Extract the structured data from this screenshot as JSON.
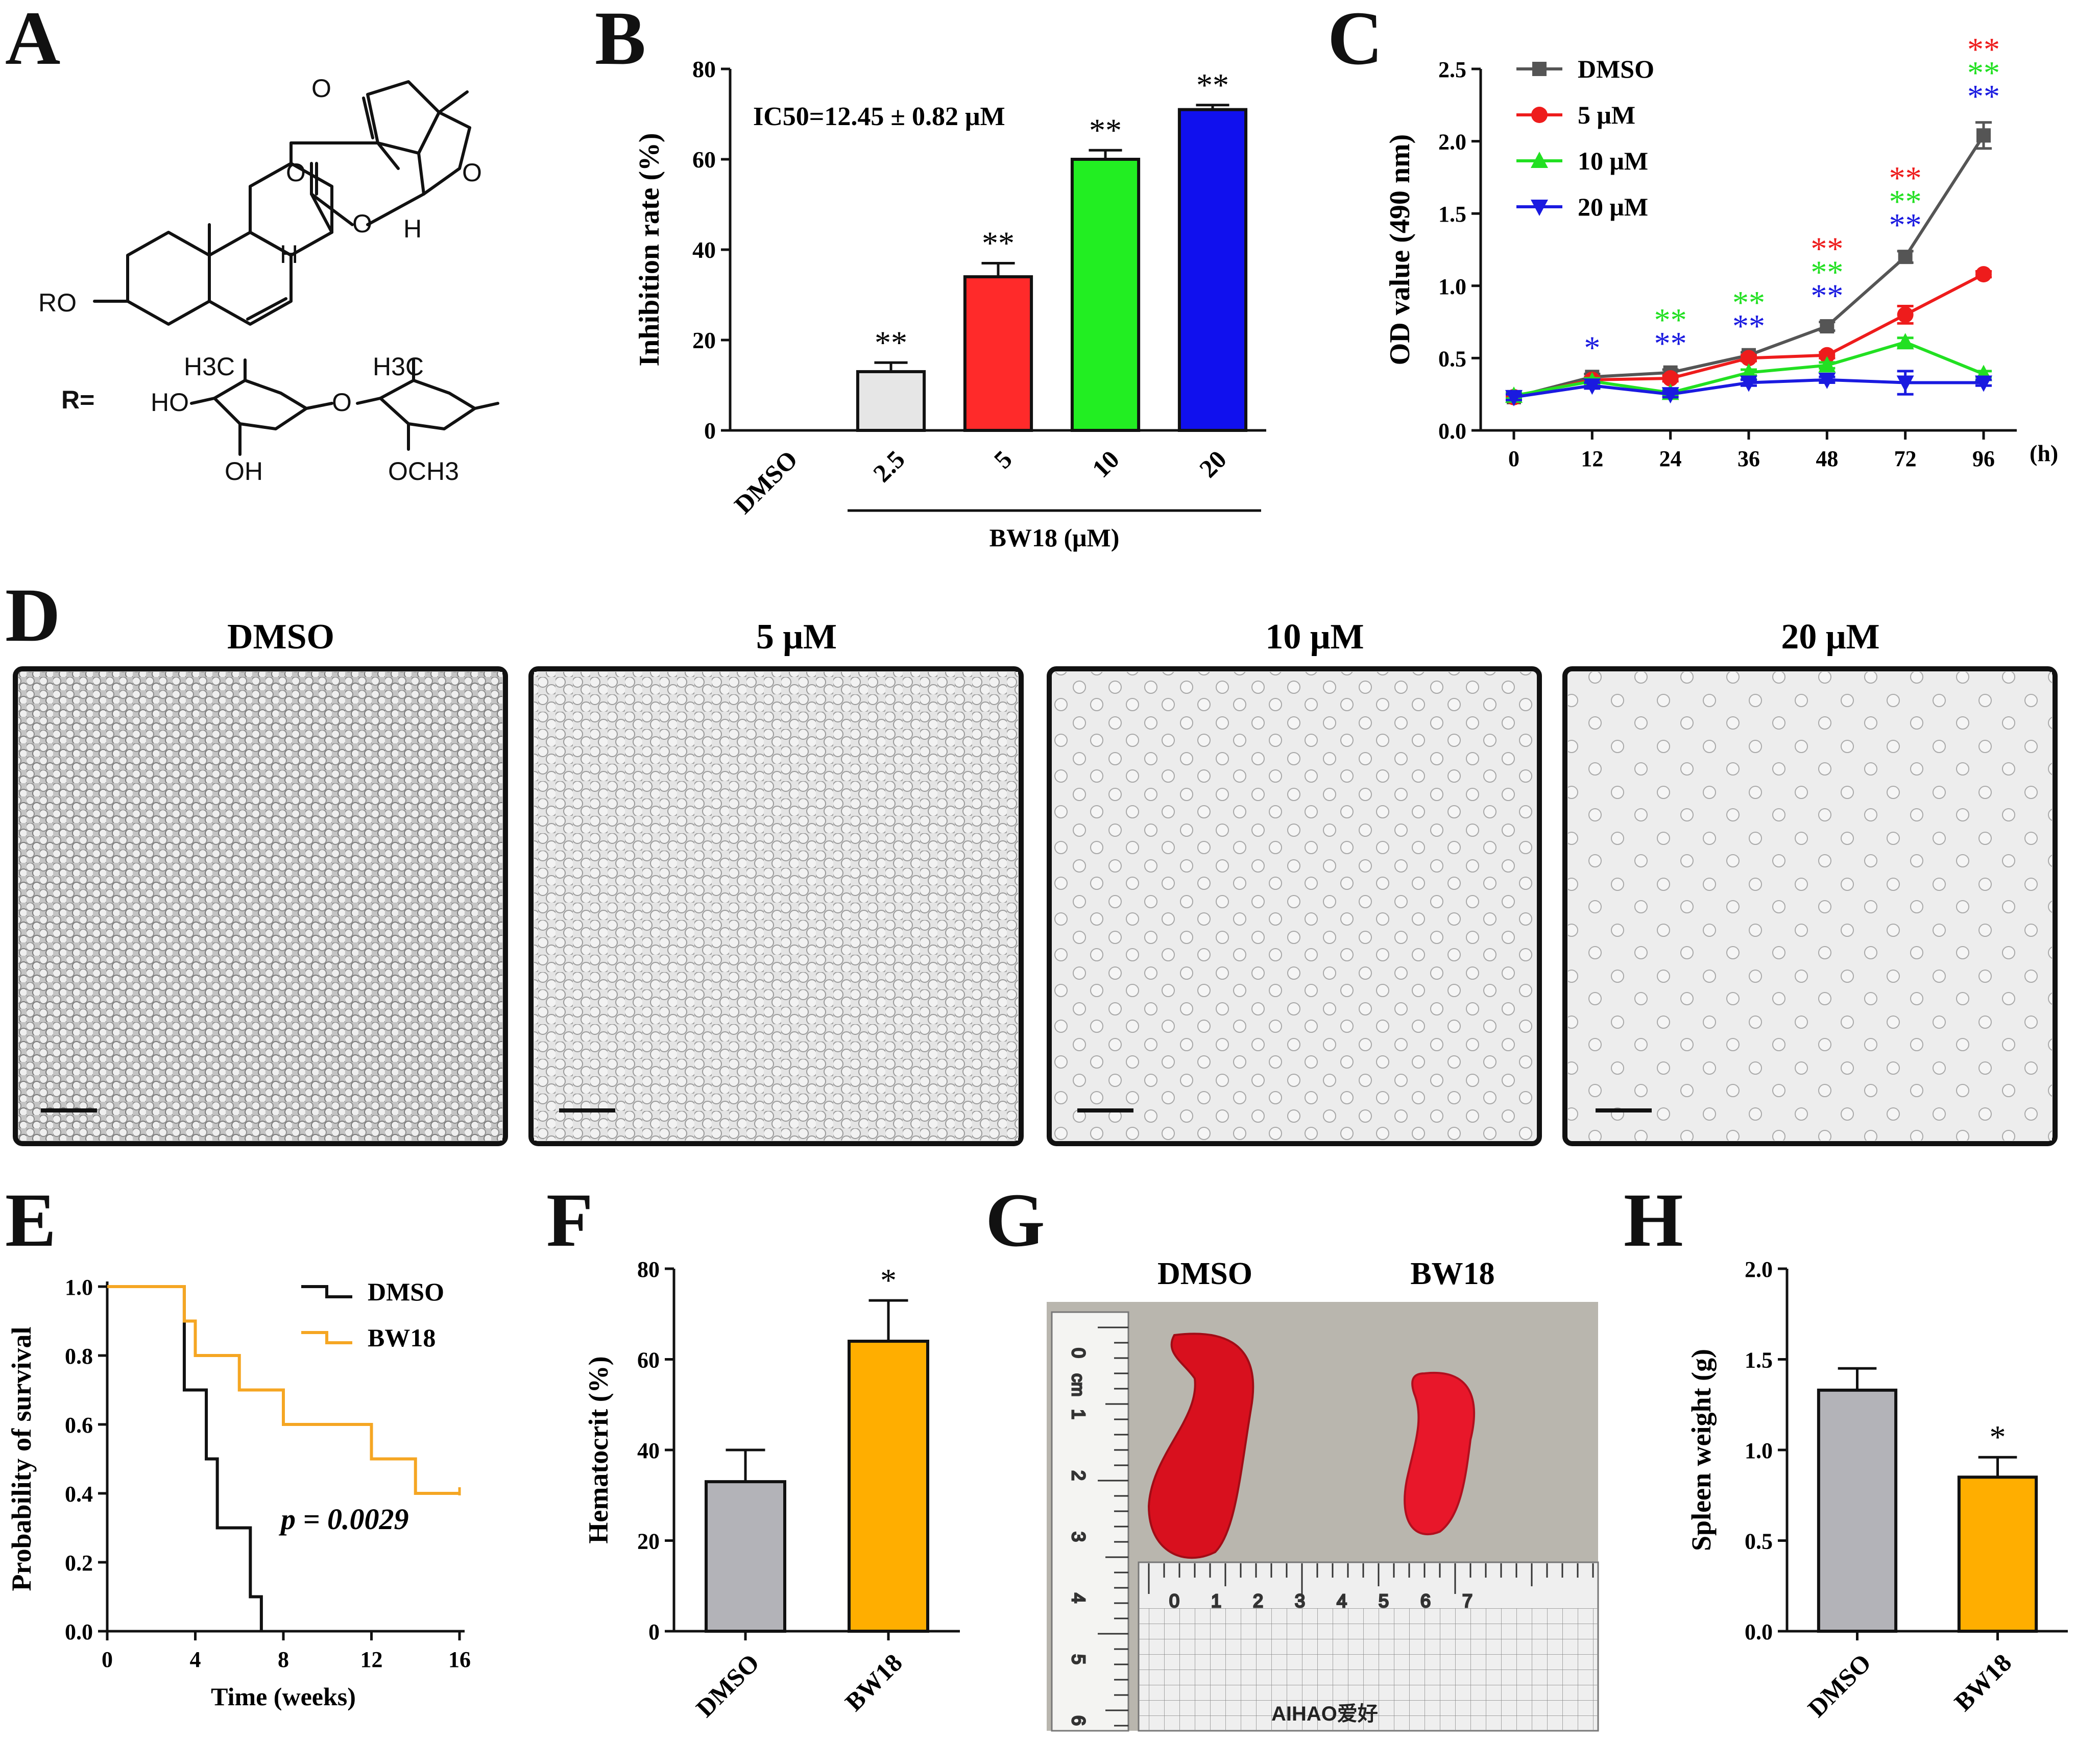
{
  "panels": {
    "A": {
      "letter": "A",
      "substituent_label": "R=",
      "atom_labels": {
        "ro": "RO",
        "h_ring": "H",
        "h_lactone": "H",
        "ho": "HO",
        "oh": "OH",
        "h3c_1": "H3C",
        "h3c_2": "H3C",
        "och3": "OCH3",
        "o": "O"
      }
    },
    "B": {
      "letter": "B",
      "ic50": "IC50=12.45 ± 0.82 μM",
      "group_label": "BW18 (μM)"
    },
    "C": {
      "letter": "C",
      "x_unit": "(h)"
    },
    "D": {
      "letter": "D",
      "panels": [
        "DMSO",
        "5 μM",
        "10 μM",
        "20 μM"
      ]
    },
    "E": {
      "letter": "E",
      "p_value": "p = 0.0029"
    },
    "F": {
      "letter": "F"
    },
    "G": {
      "letter": "G",
      "labels": [
        "DMSO",
        "BW18"
      ],
      "ruler_brand": "AIHAO爱好",
      "ruler_cm_label": "cm",
      "ruler_numbers": [
        "0",
        "1",
        "2",
        "3",
        "4",
        "5",
        "6",
        "7"
      ]
    },
    "H": {
      "letter": "H"
    }
  },
  "chart_data": [
    {
      "id": "B",
      "type": "bar",
      "ylabel": "Inhibition rate (%)",
      "xlabel": "BW18 (μM)",
      "categories": [
        "DMSO",
        "2.5",
        "5",
        "10",
        "20"
      ],
      "values": [
        0,
        13,
        34,
        60,
        71
      ],
      "errors": [
        0,
        2,
        3,
        2,
        1
      ],
      "significance": [
        "",
        "**",
        "**",
        "**",
        "**"
      ],
      "colors": [
        "#ffffff",
        "#e6e6e6",
        "#ff2a2a",
        "#22ee22",
        "#1010ee"
      ],
      "ylim": [
        0,
        80
      ],
      "yticks": [
        0,
        20,
        40,
        60,
        80
      ]
    },
    {
      "id": "C",
      "type": "line",
      "ylabel": "OD value (490 nm)",
      "xlabel": "(h)",
      "categories": [
        "0",
        "12",
        "24",
        "36",
        "48",
        "72",
        "96"
      ],
      "series": [
        {
          "name": "DMSO",
          "color": "#555555",
          "marker": "square",
          "values": [
            0.23,
            0.37,
            0.4,
            0.52,
            0.72,
            1.2,
            2.04
          ],
          "errors": [
            0.02,
            0.02,
            0.02,
            0.02,
            0.03,
            0.04,
            0.09
          ]
        },
        {
          "name": "5 μM",
          "color": "#ee1c1c",
          "marker": "circle",
          "values": [
            0.23,
            0.35,
            0.36,
            0.5,
            0.52,
            0.8,
            1.08
          ],
          "errors": [
            0.02,
            0.02,
            0.02,
            0.02,
            0.02,
            0.06,
            0.02
          ]
        },
        {
          "name": "10 μM",
          "color": "#22e022",
          "marker": "triangle-up",
          "values": [
            0.24,
            0.34,
            0.26,
            0.4,
            0.45,
            0.61,
            0.39
          ],
          "errors": [
            0.02,
            0.02,
            0.02,
            0.02,
            0.02,
            0.03,
            0.02
          ]
        },
        {
          "name": "20 μM",
          "color": "#1a1ae0",
          "marker": "triangle-down",
          "values": [
            0.23,
            0.31,
            0.25,
            0.33,
            0.35,
            0.33,
            0.33
          ],
          "errors": [
            0.02,
            0.02,
            0.02,
            0.02,
            0.02,
            0.08,
            0.02
          ]
        }
      ],
      "significance": [
        {
          "x": "12",
          "rows": [
            {
              "text": "*",
              "color": "#1a1ae0"
            }
          ]
        },
        {
          "x": "24",
          "rows": [
            {
              "text": "**",
              "color": "#22e022"
            },
            {
              "text": "**",
              "color": "#1a1ae0"
            }
          ]
        },
        {
          "x": "36",
          "rows": [
            {
              "text": "**",
              "color": "#22e022"
            },
            {
              "text": "**",
              "color": "#1a1ae0"
            }
          ]
        },
        {
          "x": "48",
          "rows": [
            {
              "text": "**",
              "color": "#ee1c1c"
            },
            {
              "text": "**",
              "color": "#22e022"
            },
            {
              "text": "**",
              "color": "#1a1ae0"
            }
          ]
        },
        {
          "x": "72",
          "rows": [
            {
              "text": "**",
              "color": "#ee1c1c"
            },
            {
              "text": "**",
              "color": "#22e022"
            },
            {
              "text": "**",
              "color": "#1a1ae0"
            }
          ]
        },
        {
          "x": "96",
          "rows": [
            {
              "text": "**",
              "color": "#ee1c1c"
            },
            {
              "text": "**",
              "color": "#22e022"
            },
            {
              "text": "**",
              "color": "#1a1ae0"
            }
          ]
        }
      ],
      "ylim": [
        0,
        2.5
      ],
      "yticks": [
        "0.0",
        "0.5",
        "1.0",
        "1.5",
        "2.0",
        "2.5"
      ]
    },
    {
      "id": "E",
      "type": "line",
      "subtype": "kaplan-meier",
      "ylabel": "Probability of survival",
      "xlabel": "Time (weeks)",
      "series": [
        {
          "name": "DMSO",
          "color": "#111111",
          "steps": [
            [
              0,
              1.0
            ],
            [
              3.5,
              0.7
            ],
            [
              4.5,
              0.5
            ],
            [
              5,
              0.3
            ],
            [
              6.5,
              0.1
            ],
            [
              7,
              0.0
            ]
          ],
          "end": 7
        },
        {
          "name": "BW18",
          "color": "#f5a623",
          "steps": [
            [
              0,
              1.0
            ],
            [
              3.5,
              0.9
            ],
            [
              4,
              0.8
            ],
            [
              6,
              0.7
            ],
            [
              8,
              0.6
            ],
            [
              12,
              0.5
            ],
            [
              14,
              0.4
            ]
          ],
          "end": 16
        }
      ],
      "xlim": [
        0,
        16
      ],
      "xticks": [
        "0",
        "4",
        "8",
        "12",
        "16"
      ],
      "ylim": [
        0,
        1
      ],
      "yticks": [
        "0.0",
        "0.2",
        "0.4",
        "0.6",
        "0.8",
        "1.0"
      ]
    },
    {
      "id": "F",
      "type": "bar",
      "ylabel": "Hematocrit (%)",
      "categories": [
        "DMSO",
        "BW18"
      ],
      "values": [
        33,
        64
      ],
      "errors": [
        7,
        9
      ],
      "significance": [
        "",
        "*"
      ],
      "colors": [
        "#b3b3b8",
        "#ffae00"
      ],
      "ylim": [
        0,
        80
      ],
      "yticks": [
        "0",
        "20",
        "40",
        "60",
        "80"
      ]
    },
    {
      "id": "H",
      "type": "bar",
      "ylabel": "Spleen weight (g)",
      "categories": [
        "DMSO",
        "BW18"
      ],
      "values": [
        1.33,
        0.85
      ],
      "errors": [
        0.12,
        0.11
      ],
      "significance": [
        "",
        "*"
      ],
      "colors": [
        "#b3b3b8",
        "#ffae00"
      ],
      "ylim": [
        0,
        2.0
      ],
      "yticks": [
        "0.0",
        "0.5",
        "1.0",
        "1.5",
        "2.0"
      ]
    }
  ]
}
